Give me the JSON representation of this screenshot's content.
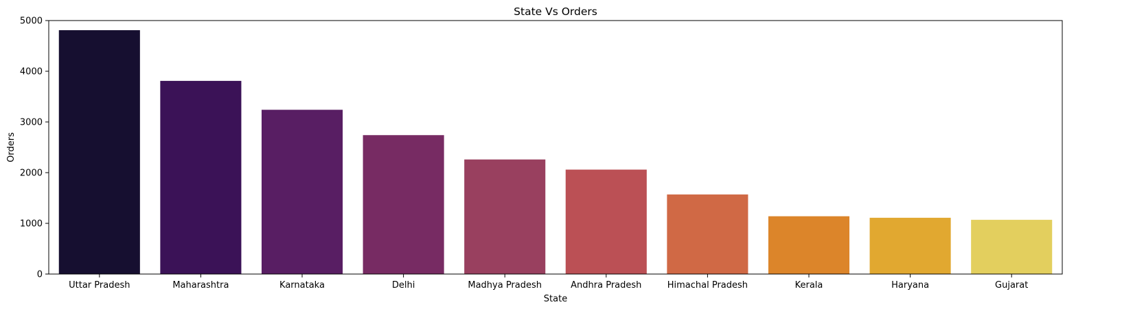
{
  "chart_data": {
    "type": "bar",
    "title": "State Vs Orders",
    "xlabel": "State",
    "ylabel": "Orders",
    "categories": [
      "Uttar Pradesh",
      "Maharashtra",
      "Karnataka",
      "Delhi",
      "Madhya Pradesh",
      "Andhra Pradesh",
      "Himachal Pradesh",
      "Kerala",
      "Haryana",
      "Gujarat"
    ],
    "values": [
      4810,
      3810,
      3240,
      2740,
      2260,
      2060,
      1570,
      1140,
      1110,
      1070
    ],
    "colors": [
      "#160f30",
      "#3b1257",
      "#581e63",
      "#772b63",
      "#99405f",
      "#bb5055",
      "#d06945",
      "#dc852a",
      "#e1a830",
      "#e3cf5e"
    ],
    "ylim": [
      0,
      5000
    ],
    "yticks": [
      0,
      1000,
      2000,
      3000,
      4000,
      5000
    ],
    "grid": false
  }
}
